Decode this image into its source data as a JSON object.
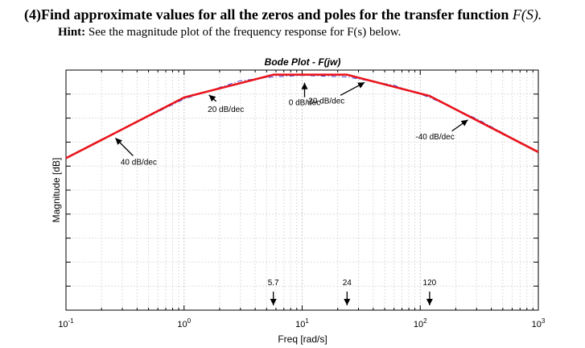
{
  "question": {
    "number": "(4)",
    "text": "Find approximate values for all the zeros and poles for the transfer function",
    "func": "F(S).",
    "hint_label": "Hint:",
    "hint_text": "See the magnitude plot of the frequency response for F(s) below."
  },
  "chart_data": {
    "type": "line",
    "title": "Bode Plot - F(jw)",
    "xlabel": "Freq [rad/s]",
    "ylabel": "Magnitude [dB]",
    "xscale": "log",
    "xlim": [
      0.1,
      1000
    ],
    "x_ticks": [
      {
        "base": "10",
        "exp": "-1"
      },
      {
        "base": "10",
        "exp": "0"
      },
      {
        "base": "10",
        "exp": "1"
      },
      {
        "base": "10",
        "exp": "2"
      },
      {
        "base": "10",
        "exp": "3"
      }
    ],
    "grid": true,
    "y_tick_labels": "none",
    "series": [
      {
        "style": "solid",
        "color": "#e8141c",
        "x": [
          0.1,
          1,
          5.7,
          24,
          120,
          1000
        ],
        "y_rel_db": [
          -75,
          -35,
          -20,
          -20,
          -34,
          -71
        ]
      },
      {
        "style": "dash-dot",
        "color": "#3b3bd6",
        "x": [
          0.1,
          0.3,
          1,
          3,
          5.7,
          10,
          24,
          60,
          120,
          300,
          1000
        ],
        "y_rel_db": [
          -75,
          -56,
          -36,
          -24,
          -21.5,
          -20.5,
          -21.5,
          -27,
          -35,
          -49,
          -71
        ]
      }
    ],
    "annotations": [
      {
        "text": "40 dB/dec",
        "target_x": 0.25
      },
      {
        "text": "20 dB/dec",
        "target_x": 1.55
      },
      {
        "text": "0 dB/dec",
        "target_x": 10
      },
      {
        "text": "-20 dB/dec",
        "target_x": 36
      },
      {
        "text": "-40 dB/dec",
        "target_x": 270
      }
    ],
    "frequency_markers": [
      {
        "text": "5.7",
        "x": 5.7
      },
      {
        "text": "24",
        "x": 24
      },
      {
        "text": "120",
        "x": 120
      }
    ]
  }
}
